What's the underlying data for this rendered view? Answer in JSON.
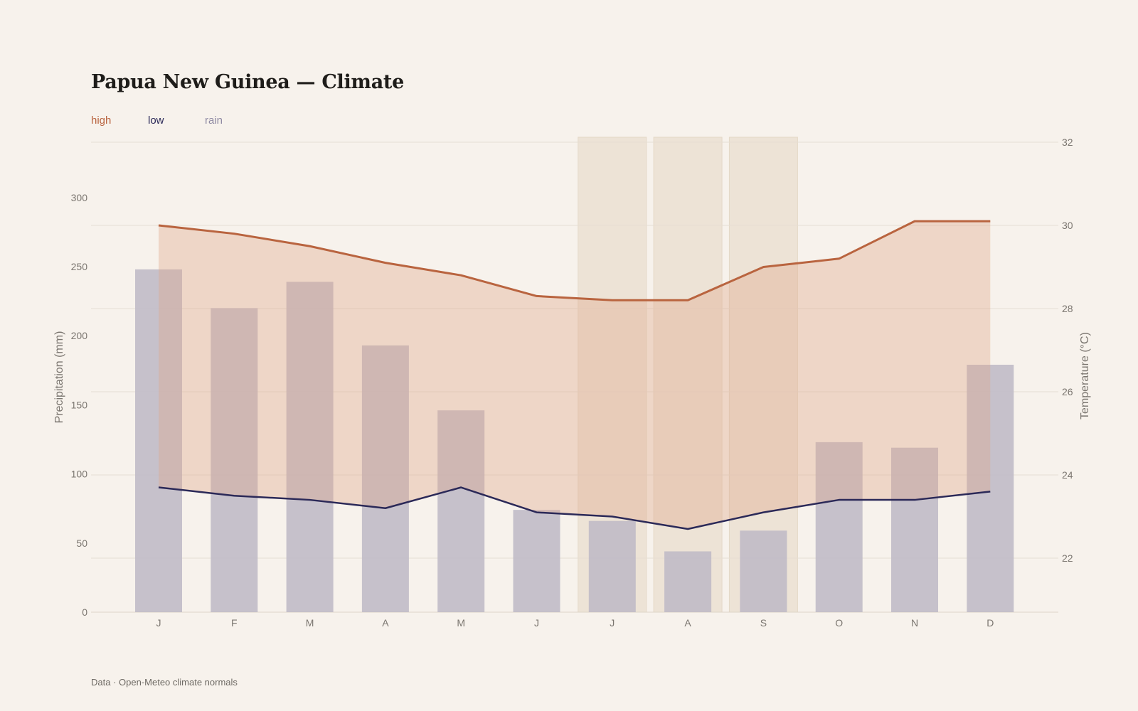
{
  "title": "Papua New Guinea — Climate",
  "footer": "Data · Open-Meteo climate normals",
  "legend": [
    {
      "label": "high",
      "color": "#b9643f"
    },
    {
      "label": "low",
      "color": "#2b2958"
    },
    {
      "label": "rain",
      "color": "#8f8aa3"
    }
  ],
  "colors": {
    "high": "#b9643f",
    "low": "#2b2958",
    "rain_bar": "#bdb9c6",
    "band_fill": "#dfa88c",
    "highlight": "#ece2d4",
    "grid": "#e6ded3"
  },
  "chart_data": {
    "type": "bar+line",
    "categories": [
      "J",
      "F",
      "M",
      "A",
      "M",
      "J",
      "J",
      "A",
      "S",
      "O",
      "N",
      "D"
    ],
    "highlighted_months": [
      6,
      7,
      8
    ],
    "left_axis": {
      "label": "Precipitation (mm)",
      "ylim": [
        0,
        340
      ],
      "ticks": [
        0,
        50,
        100,
        150,
        200,
        250,
        300
      ]
    },
    "right_axis": {
      "label": "Temperature (°C)",
      "ylim": [
        20.7,
        32
      ],
      "ticks": [
        22,
        24,
        26,
        28,
        30,
        32
      ]
    },
    "series": [
      {
        "name": "rain",
        "axis": "left",
        "type": "bar",
        "values": [
          248,
          220,
          239,
          193,
          146,
          74,
          66,
          44,
          59,
          123,
          119,
          179
        ]
      },
      {
        "name": "high",
        "axis": "right",
        "type": "line",
        "values": [
          30.0,
          29.8,
          29.5,
          29.1,
          28.8,
          28.3,
          28.2,
          28.2,
          29.0,
          29.2,
          30.1,
          30.1
        ]
      },
      {
        "name": "low",
        "axis": "right",
        "type": "line",
        "values": [
          23.7,
          23.5,
          23.4,
          23.2,
          23.7,
          23.1,
          23.0,
          22.7,
          23.1,
          23.4,
          23.4,
          23.6
        ]
      }
    ]
  }
}
